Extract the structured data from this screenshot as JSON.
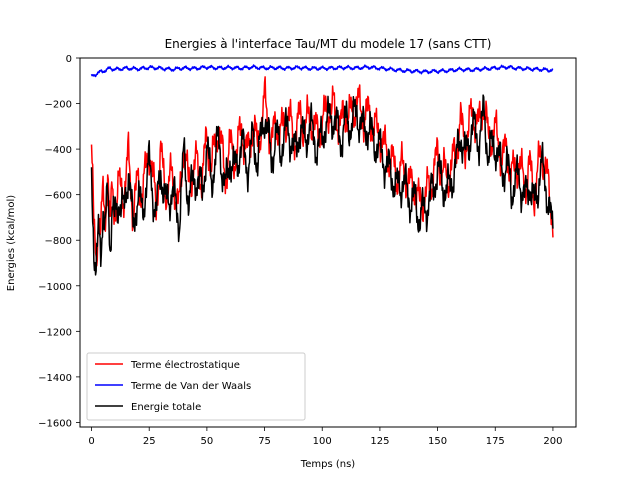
{
  "chart_data": {
    "type": "line",
    "title": "Energies à l'interface Tau/MT du modele 17 (sans CTT)",
    "xlabel": "Temps (ns)",
    "ylabel": "Energies (kcal/mol)",
    "xlim": [
      -5,
      210
    ],
    "ylim": [
      -1620,
      0
    ],
    "xticks": [
      0,
      25,
      50,
      75,
      100,
      125,
      150,
      175,
      200
    ],
    "yticks": [
      0,
      -200,
      -400,
      -600,
      -800,
      -1000,
      -1200,
      -1400,
      -1600
    ],
    "xtick_labels": [
      "0",
      "25",
      "50",
      "75",
      "100",
      "125",
      "150",
      "175",
      "200"
    ],
    "ytick_labels": [
      "0",
      "−200",
      "−400",
      "−600",
      "−800",
      "−1000",
      "−1200",
      "−1400",
      "−1600"
    ],
    "grid": false,
    "legend_position": "lower-left",
    "series": [
      {
        "name": "Terme électrostatique",
        "color": "#ff0000",
        "x": [
          0,
          1,
          2,
          3,
          4,
          5,
          6,
          7,
          8,
          9,
          10,
          12,
          14,
          16,
          18,
          20,
          22,
          25,
          28,
          30,
          32,
          35,
          38,
          40,
          42,
          45,
          48,
          50,
          52,
          55,
          58,
          60,
          62,
          65,
          68,
          70,
          72,
          75,
          78,
          80,
          82,
          85,
          88,
          90,
          92,
          95,
          98,
          100,
          102,
          105,
          108,
          110,
          112,
          115,
          118,
          120,
          122,
          125,
          128,
          130,
          132,
          135,
          138,
          140,
          142,
          145,
          148,
          150,
          152,
          155,
          158,
          160,
          162,
          165,
          168,
          170,
          172,
          175,
          178,
          180,
          182,
          185,
          188,
          190,
          192,
          195,
          198,
          200
        ],
        "values": [
          -380,
          -750,
          -900,
          -680,
          -760,
          -600,
          -700,
          -480,
          -750,
          -580,
          -660,
          -560,
          -600,
          -430,
          -680,
          -540,
          -600,
          -400,
          -640,
          -420,
          -580,
          -520,
          -660,
          -360,
          -560,
          -460,
          -520,
          -350,
          -480,
          -300,
          -520,
          -380,
          -440,
          -320,
          -420,
          -280,
          -400,
          -180,
          -380,
          -280,
          -340,
          -240,
          -360,
          -260,
          -300,
          -260,
          -340,
          -280,
          -230,
          -220,
          -300,
          -230,
          -260,
          -190,
          -260,
          -240,
          -300,
          -340,
          -420,
          -440,
          -520,
          -480,
          -560,
          -560,
          -640,
          -600,
          -520,
          -420,
          -500,
          -520,
          -400,
          -280,
          -380,
          -240,
          -300,
          -180,
          -360,
          -320,
          -440,
          -400,
          -520,
          -460,
          -560,
          -480,
          -600,
          -400,
          -560,
          -700
        ]
      },
      {
        "name": "Terme de Van der Waals",
        "color": "#0000ff",
        "x": [
          0,
          2,
          4,
          6,
          8,
          10,
          15,
          20,
          25,
          30,
          35,
          40,
          45,
          50,
          55,
          60,
          65,
          70,
          75,
          80,
          85,
          90,
          95,
          100,
          105,
          110,
          115,
          120,
          125,
          130,
          135,
          140,
          145,
          150,
          155,
          160,
          165,
          170,
          175,
          180,
          185,
          190,
          195,
          200
        ],
        "values": [
          -80,
          -70,
          -60,
          -55,
          -45,
          -50,
          -45,
          -48,
          -42,
          -45,
          -50,
          -44,
          -46,
          -40,
          -44,
          -42,
          -45,
          -40,
          -44,
          -43,
          -45,
          -42,
          -46,
          -45,
          -44,
          -42,
          -44,
          -40,
          -45,
          -50,
          -55,
          -58,
          -60,
          -58,
          -55,
          -50,
          -52,
          -48,
          -44,
          -40,
          -45,
          -48,
          -50,
          -55
        ]
      },
      {
        "name": "Energie totale",
        "color": "#000000",
        "x": [
          0,
          1,
          2,
          3,
          4,
          5,
          6,
          7,
          8,
          9,
          10,
          12,
          14,
          16,
          18,
          20,
          22,
          25,
          28,
          30,
          32,
          35,
          38,
          40,
          42,
          45,
          48,
          50,
          52,
          55,
          58,
          60,
          62,
          65,
          68,
          70,
          72,
          75,
          78,
          80,
          82,
          85,
          88,
          90,
          92,
          95,
          98,
          100,
          102,
          105,
          108,
          110,
          112,
          115,
          118,
          120,
          122,
          125,
          128,
          130,
          132,
          135,
          138,
          140,
          142,
          145,
          148,
          150,
          152,
          155,
          158,
          160,
          162,
          165,
          168,
          170,
          172,
          175,
          178,
          180,
          182,
          185,
          188,
          190,
          192,
          195,
          198,
          200
        ],
        "values": [
          -480,
          -820,
          -970,
          -760,
          -830,
          -660,
          -770,
          -560,
          -820,
          -650,
          -720,
          -620,
          -680,
          -480,
          -750,
          -600,
          -680,
          -460,
          -700,
          -480,
          -650,
          -580,
          -720,
          -420,
          -620,
          -520,
          -580,
          -400,
          -540,
          -360,
          -580,
          -440,
          -500,
          -380,
          -480,
          -340,
          -460,
          -240,
          -440,
          -340,
          -400,
          -300,
          -420,
          -320,
          -360,
          -300,
          -400,
          -340,
          -280,
          -260,
          -360,
          -280,
          -300,
          -240,
          -320,
          -300,
          -360,
          -400,
          -480,
          -500,
          -580,
          -540,
          -620,
          -620,
          -700,
          -660,
          -580,
          -480,
          -560,
          -580,
          -460,
          -330,
          -440,
          -300,
          -360,
          -240,
          -420,
          -380,
          -500,
          -460,
          -580,
          -520,
          -620,
          -540,
          -660,
          -460,
          -620,
          -780
        ]
      }
    ]
  }
}
